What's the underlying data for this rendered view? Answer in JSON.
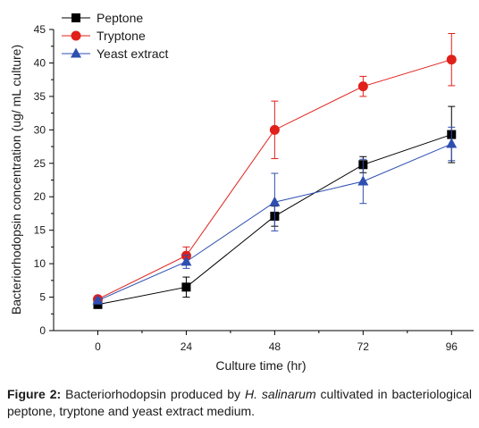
{
  "chart_data": {
    "type": "line",
    "title": "",
    "xlabel": "Culture time (hr)",
    "ylabel": "Bacteriorhodopsin concentration (ug/ mL culture)",
    "x": [
      0,
      24,
      48,
      72,
      96
    ],
    "x_tick_labels": [
      "0",
      "24",
      "48",
      "72",
      "96"
    ],
    "xlim": [
      -12,
      102
    ],
    "ylim": [
      0,
      45
    ],
    "y_ticks": [
      0,
      5,
      10,
      15,
      20,
      25,
      30,
      35,
      40,
      45
    ],
    "y_tick_labels": [
      "0",
      "5",
      "10",
      "15",
      "20",
      "25",
      "30",
      "35",
      "40",
      "45"
    ],
    "grid": false,
    "legend_position": "top-left",
    "series": [
      {
        "name": "Peptone",
        "marker": "square",
        "color": "#000000",
        "values": [
          3.9,
          6.5,
          17.1,
          24.8,
          29.3
        ],
        "errors": [
          0.3,
          1.5,
          1.5,
          1.2,
          4.2
        ]
      },
      {
        "name": "Tryptone",
        "marker": "circle",
        "color": "#e0201a",
        "values": [
          4.7,
          11.2,
          30.0,
          36.5,
          40.5
        ],
        "errors": [
          0.3,
          1.3,
          4.3,
          1.5,
          3.9
        ]
      },
      {
        "name": "Yeast extract",
        "marker": "triangle",
        "color": "#2e4fb0",
        "values": [
          4.5,
          10.3,
          19.2,
          22.3,
          27.9
        ],
        "errors": [
          0.3,
          1.0,
          4.3,
          3.3,
          2.5
        ]
      }
    ]
  },
  "caption": {
    "label": "Figure 2:",
    "text_before": " Bacteriorhodopsin produced by ",
    "species": "H. salinarum",
    "text_after": " cultivated in bacteriological peptone, tryptone and yeast extract medium."
  }
}
